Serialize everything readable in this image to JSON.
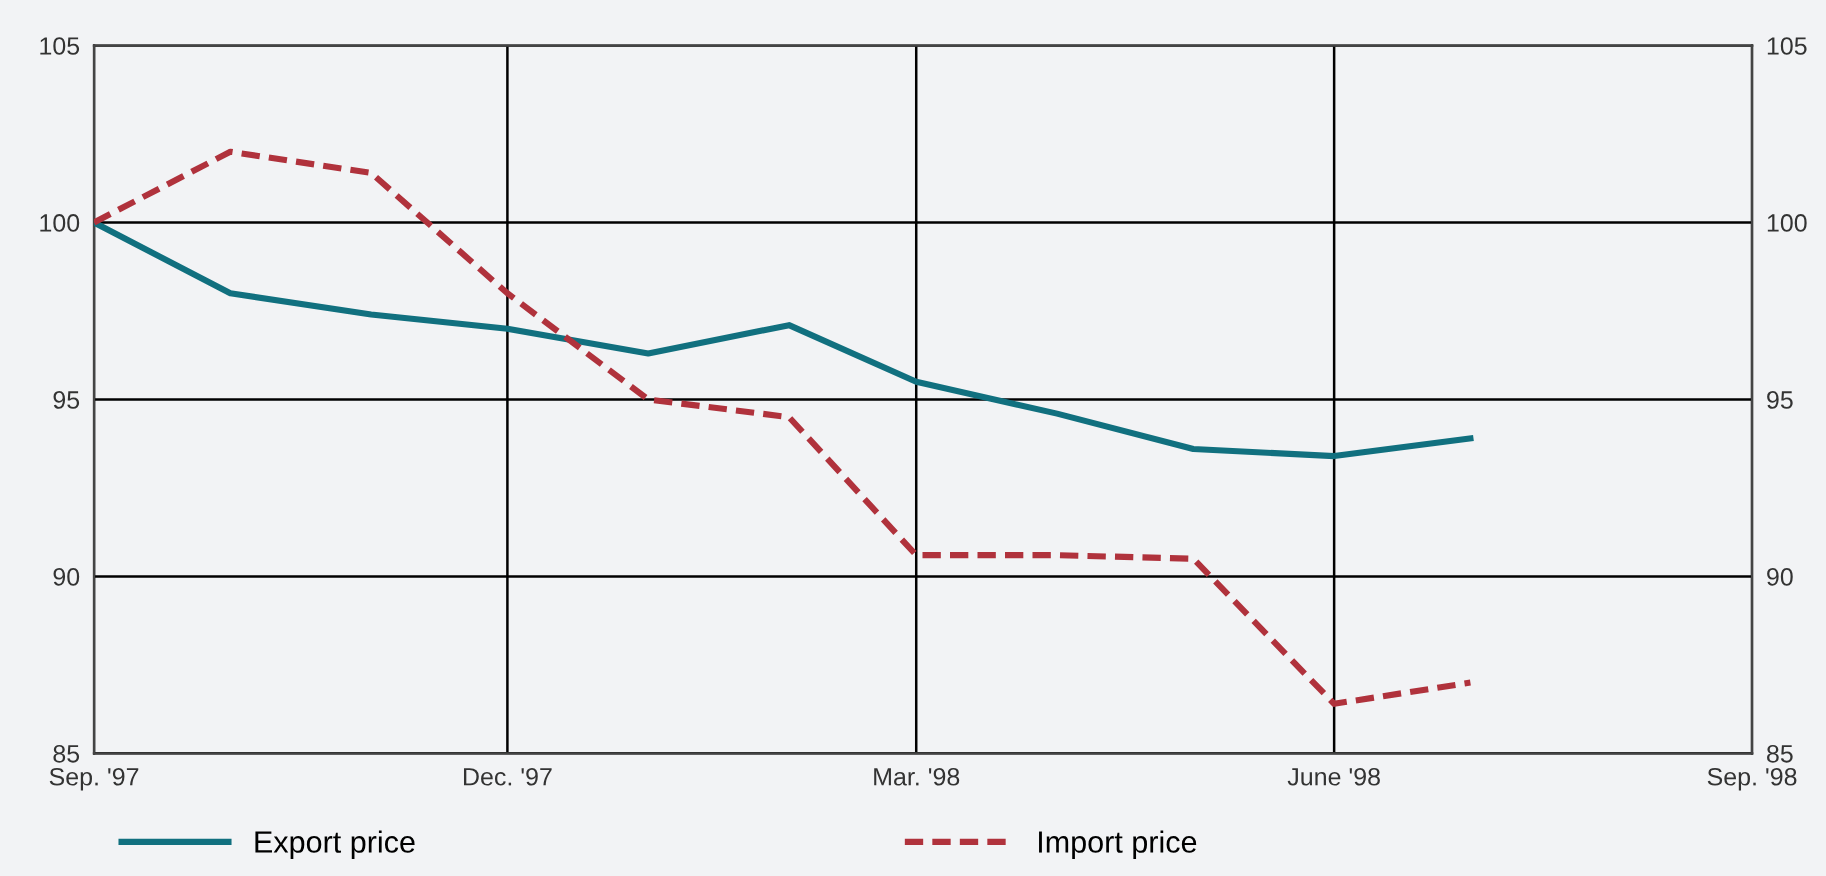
{
  "chart_data": {
    "type": "line",
    "x": [
      "1997-09",
      "1997-10",
      "1997-11",
      "1997-12",
      "1998-01",
      "1998-02",
      "1998-03",
      "1998-04",
      "1998-05",
      "1998-06",
      "1998-07"
    ],
    "series": [
      {
        "name": "Export price",
        "color": "#11707f",
        "line_style": "solid",
        "values": [
          100,
          98.0,
          97.4,
          97.0,
          96.3,
          97.1,
          95.5,
          94.6,
          93.6,
          93.4,
          93.9
        ]
      },
      {
        "name": "Import price",
        "color": "#b0323c",
        "line_style": "dashed",
        "values": [
          100,
          102.0,
          101.4,
          98.0,
          95.0,
          94.5,
          90.6,
          90.6,
          90.5,
          86.4,
          87.0
        ]
      }
    ],
    "xlim": [
      "1997-09",
      "1998-09"
    ],
    "xticks": [
      {
        "value": "1997-09",
        "label": "Sep. '97"
      },
      {
        "value": "1997-12",
        "label": "Dec. '97"
      },
      {
        "value": "1998-03",
        "label": "Mar. '98"
      },
      {
        "value": "1998-06",
        "label": "June '98"
      },
      {
        "value": "1998-09",
        "label": "Sep. '98"
      }
    ],
    "ylim": [
      85,
      105
    ],
    "yticks": [
      85,
      90,
      95,
      100,
      105
    ],
    "y2lim": [
      85,
      105
    ],
    "y2ticks": [
      85,
      90,
      95,
      100,
      105
    ],
    "grid": true,
    "legend": "bottom",
    "marker": "none"
  }
}
